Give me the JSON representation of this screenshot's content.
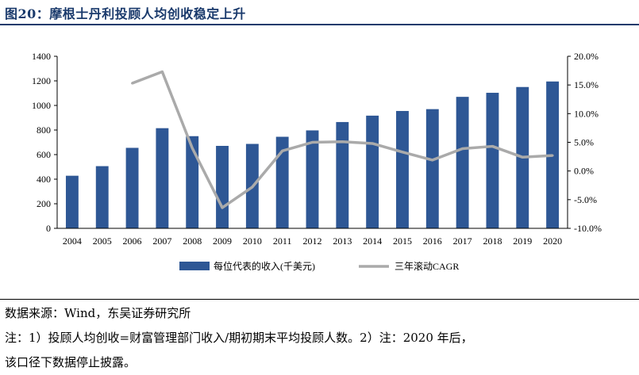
{
  "header": {
    "title": "图20：摩根士丹利投顾人均创收稳定上升"
  },
  "chart_data": {
    "type": "bar",
    "categories": [
      "2004",
      "2005",
      "2006",
      "2007",
      "2008",
      "2009",
      "2010",
      "2011",
      "2012",
      "2013",
      "2014",
      "2015",
      "2016",
      "2017",
      "2018",
      "2019",
      "2020"
    ],
    "series": [
      {
        "name": "每位代表的收入(千美元)",
        "type": "bar",
        "axis": "left",
        "color": "#2e5795",
        "values": [
          428,
          506,
          655,
          815,
          750,
          671,
          687,
          745,
          797,
          865,
          917,
          955,
          970,
          1070,
          1103,
          1150,
          1195
        ]
      },
      {
        "name": "三年滚动CAGR",
        "type": "line",
        "axis": "right",
        "color": "#aaaaaa",
        "values": [
          null,
          null,
          15.3,
          17.3,
          4.0,
          -6.4,
          -2.8,
          3.5,
          5.0,
          5.1,
          4.8,
          3.3,
          1.9,
          3.9,
          4.3,
          2.4,
          2.7
        ]
      }
    ],
    "y_left": {
      "range": [
        0,
        1400
      ],
      "ticks": [
        "0",
        "200",
        "400",
        "600",
        "800",
        "1000",
        "1200",
        "1400"
      ]
    },
    "y_right": {
      "range": [
        -10,
        20
      ],
      "ticks": [
        "-10.0%",
        "-5.0%",
        "0.0%",
        "5.0%",
        "10.0%",
        "15.0%",
        "20.0%"
      ]
    },
    "grid": false,
    "legend_position": "bottom"
  },
  "footer": {
    "source": "数据来源：Wind，东吴证券研究所",
    "note_line1": "注：1）投顾人均创收=财富管理部门收入/期初期末平均投顾人数。2）注：2020 年后，",
    "note_line2": "该口径下数据停止披露。"
  }
}
